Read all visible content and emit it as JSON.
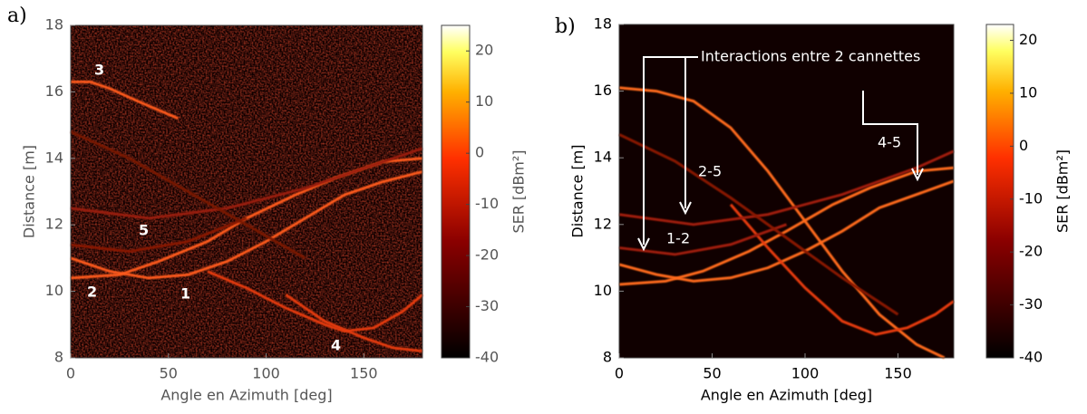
{
  "chart_data": [
    {
      "type": "heatmap",
      "label": "a)",
      "xlabel": "Angle en Azimuth [deg]",
      "ylabel": "Distance [m]",
      "clabel": "SER [dBm²]",
      "xlim": [
        0,
        180
      ],
      "xticks": [
        0,
        50,
        100,
        150
      ],
      "ylim": [
        8,
        18
      ],
      "yticks": [
        8,
        10,
        12,
        14,
        16,
        18
      ],
      "clim": [
        -40,
        25
      ],
      "cticks": [
        -40,
        -30,
        -20,
        -10,
        0,
        10,
        20
      ],
      "noise": true,
      "annotations": [
        "3",
        "5",
        "2",
        "1",
        "4"
      ],
      "series": [
        {
          "color": "#ff5a1a",
          "x": [
            0,
            10,
            20,
            35,
            55
          ],
          "y": [
            16.3,
            16.3,
            16.1,
            15.7,
            15.2
          ]
        },
        {
          "color": "#ff8a2a",
          "x": [
            0,
            180
          ],
          "y": [
            12.2,
            12.2
          ]
        },
        {
          "color": "#ff5a1a",
          "x": [
            0,
            25,
            45,
            70,
            90,
            115,
            135,
            160,
            180
          ],
          "y": [
            10.4,
            10.5,
            10.9,
            11.5,
            12.2,
            12.9,
            13.4,
            13.9,
            14.0
          ]
        },
        {
          "color": "#ff5a1a",
          "x": [
            0,
            20,
            40,
            60,
            80,
            100,
            120,
            140,
            160,
            180
          ],
          "y": [
            11.0,
            10.6,
            10.4,
            10.5,
            10.9,
            11.5,
            12.2,
            12.9,
            13.3,
            13.6
          ]
        },
        {
          "color": "#e63a10",
          "x": [
            70,
            90,
            110,
            130,
            140,
            155,
            170,
            180
          ],
          "y": [
            10.6,
            10.1,
            9.5,
            9.0,
            8.8,
            8.9,
            9.4,
            9.9
          ]
        },
        {
          "color": "#e63a10",
          "x": [
            110,
            130,
            150,
            165,
            180
          ],
          "y": [
            9.9,
            9.1,
            8.6,
            8.3,
            8.2
          ]
        },
        {
          "color": "#9a1a08",
          "x": [
            0,
            40,
            80,
            120,
            160,
            180
          ],
          "y": [
            12.5,
            12.2,
            12.5,
            13.1,
            13.9,
            14.3
          ]
        },
        {
          "color": "#8a1606",
          "x": [
            0,
            30,
            60,
            90
          ],
          "y": [
            11.4,
            11.2,
            11.5,
            12.2
          ]
        },
        {
          "color": "#7a1406",
          "x": [
            0,
            30,
            60,
            90,
            120
          ],
          "y": [
            14.8,
            14.0,
            13.0,
            12.0,
            11.0
          ]
        }
      ]
    },
    {
      "type": "heatmap",
      "label": "b)",
      "xlabel": "Angle en Azimuth [deg]",
      "ylabel": "Distance [m]",
      "clabel": "SER [dBm²]",
      "xlim": [
        0,
        180
      ],
      "xticks": [
        0,
        50,
        100,
        150
      ],
      "ylim": [
        8,
        18
      ],
      "yticks": [
        8,
        10,
        12,
        14,
        16,
        18
      ],
      "clim": [
        -40,
        23
      ],
      "cticks": [
        -40,
        -30,
        -20,
        -10,
        0,
        10,
        20
      ],
      "noise": false,
      "annotations": [
        "Interactions entre 2 cannettes",
        "1-2",
        "2-5",
        "4-5"
      ],
      "series": [
        {
          "color": "#ff6a1a",
          "x": [
            0,
            20,
            40,
            60,
            80,
            100,
            120,
            140,
            160,
            175
          ],
          "y": [
            16.1,
            16.0,
            15.7,
            14.9,
            13.6,
            12.1,
            10.6,
            9.3,
            8.4,
            8.0
          ]
        },
        {
          "color": "#ff8a2a",
          "x": [
            0,
            180
          ],
          "y": [
            12.0,
            12.0
          ]
        },
        {
          "color": "#ff6a1a",
          "x": [
            0,
            25,
            45,
            70,
            90,
            115,
            135,
            160,
            180
          ],
          "y": [
            10.2,
            10.3,
            10.6,
            11.2,
            11.8,
            12.6,
            13.1,
            13.6,
            13.7
          ]
        },
        {
          "color": "#ff6a1a",
          "x": [
            0,
            20,
            40,
            60,
            80,
            100,
            120,
            140,
            160,
            180
          ],
          "y": [
            10.8,
            10.5,
            10.3,
            10.4,
            10.7,
            11.2,
            11.8,
            12.5,
            12.9,
            13.3
          ]
        },
        {
          "color": "#e63a10",
          "x": [
            60,
            80,
            100,
            120,
            138,
            155,
            170,
            180
          ],
          "y": [
            12.6,
            11.3,
            10.1,
            9.1,
            8.7,
            8.9,
            9.3,
            9.7
          ]
        },
        {
          "color": "#a01c08",
          "x": [
            0,
            40,
            80,
            120,
            160,
            180
          ],
          "y": [
            12.3,
            12.0,
            12.3,
            12.9,
            13.7,
            14.2
          ]
        },
        {
          "color": "#a01c08",
          "x": [
            0,
            30,
            60,
            90
          ],
          "y": [
            11.3,
            11.1,
            11.4,
            12.0
          ]
        },
        {
          "color": "#8a1606",
          "x": [
            0,
            30,
            60,
            90,
            120,
            150
          ],
          "y": [
            14.7,
            13.9,
            12.8,
            11.6,
            10.4,
            9.3
          ]
        }
      ]
    }
  ]
}
